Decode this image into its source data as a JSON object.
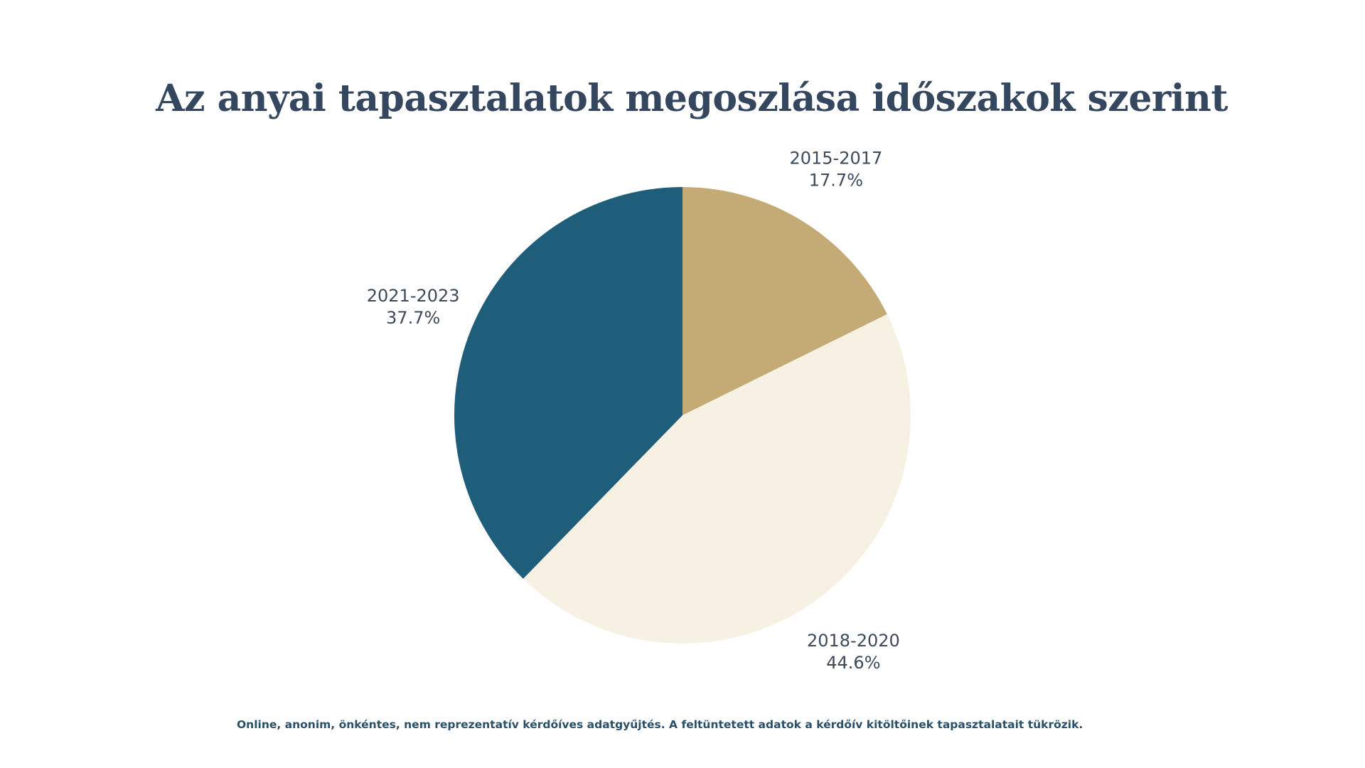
{
  "chart_data": {
    "type": "pie",
    "title": "Az anyai tapasztalatok megoszlása időszakok szerint",
    "slices": [
      {
        "label": "2015-2017",
        "value_label": "17.7%",
        "value": 17.7,
        "color": "#c4aa74"
      },
      {
        "label": "2018-2020",
        "value_label": "44.6%",
        "value": 44.6,
        "color": "#f6f1e3"
      },
      {
        "label": "2021-2023",
        "value_label": "37.7%",
        "value": 37.7,
        "color": "#1e5e7b"
      }
    ],
    "start_angle": "12 o'clock",
    "direction": "clockwise"
  },
  "footnote": "Online, anonim, önkéntes, nem reprezentatív kérdőíves adatgyűjtés. A feltüntetett adatok a kérdőív kitöltőinek tapasztalatait tükrözik."
}
